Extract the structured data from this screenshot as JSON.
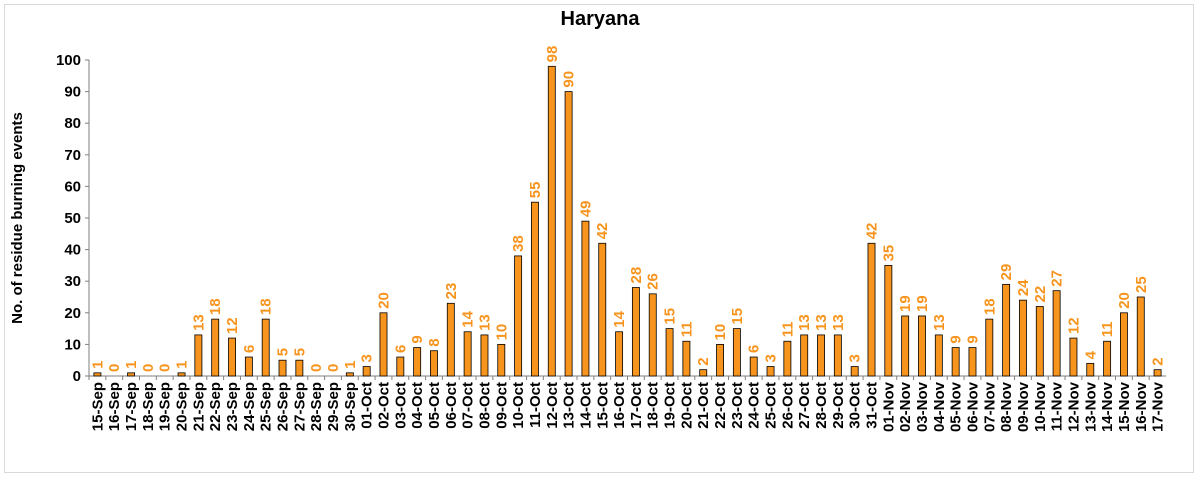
{
  "chart_data": {
    "type": "bar",
    "title": "Haryana",
    "ylabel": "No. of residue burning events",
    "xlabel": "",
    "ylim": [
      0,
      100
    ],
    "yticks": [
      0,
      10,
      20,
      30,
      40,
      50,
      60,
      70,
      80,
      90,
      100
    ],
    "grid": false,
    "legend": "none",
    "bar_color": "#F7941D",
    "bar_edge_color": "#000000",
    "label_color": "#F7941D",
    "categories": [
      "15-Sep",
      "16-Sep",
      "17-Sep",
      "18-Sep",
      "19-Sep",
      "20-Sep",
      "21-Sep",
      "22-Sep",
      "23-Sep",
      "24-Sep",
      "25-Sep",
      "26-Sep",
      "27-Sep",
      "28-Sep",
      "29-Sep",
      "30-Sep",
      "01-Oct",
      "02-Oct",
      "03-Oct",
      "04-Oct",
      "05-Oct",
      "06-Oct",
      "07-Oct",
      "08-Oct",
      "09-Oct",
      "10-Oct",
      "11-Oct",
      "12-Oct",
      "13-Oct",
      "14-Oct",
      "15-Oct",
      "16-Oct",
      "17-Oct",
      "18-Oct",
      "19-Oct",
      "20-Oct",
      "21-Oct",
      "22-Oct",
      "23-Oct",
      "24-Oct",
      "25-Oct",
      "26-Oct",
      "27-Oct",
      "28-Oct",
      "29-Oct",
      "30-Oct",
      "31-Oct",
      "01-Nov",
      "02-Nov",
      "03-Nov",
      "04-Nov",
      "05-Nov",
      "06-Nov",
      "07-Nov",
      "08-Nov",
      "09-Nov",
      "10-Nov",
      "11-Nov",
      "12-Nov",
      "13-Nov",
      "14-Nov",
      "15-Nov",
      "16-Nov",
      "17-Nov"
    ],
    "values": [
      1,
      0,
      1,
      0,
      0,
      1,
      13,
      18,
      12,
      6,
      18,
      5,
      5,
      0,
      0,
      1,
      3,
      20,
      6,
      9,
      8,
      23,
      14,
      13,
      10,
      38,
      55,
      98,
      90,
      49,
      42,
      14,
      28,
      26,
      15,
      11,
      2,
      10,
      15,
      6,
      3,
      11,
      13,
      13,
      13,
      3,
      42,
      35,
      19,
      19,
      13,
      9,
      9,
      18,
      29,
      24,
      22,
      27,
      12,
      4,
      11,
      20,
      25,
      2
    ]
  }
}
